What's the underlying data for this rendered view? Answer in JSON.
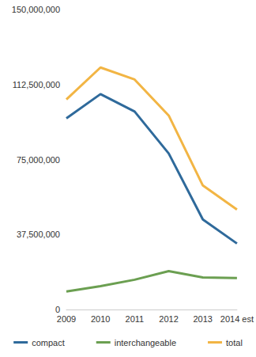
{
  "chart_data": {
    "type": "line",
    "categories": [
      "2009",
      "2010",
      "2011",
      "2012",
      "2013",
      "2014 est"
    ],
    "series": [
      {
        "name": "compact",
        "color": "#2f6a9b",
        "values": [
          95600000,
          107700000,
          99000000,
          78000000,
          45000000,
          33000000
        ]
      },
      {
        "name": "interchangeable",
        "color": "#6b9f51",
        "values": [
          9000000,
          11700000,
          14900000,
          19200000,
          16000000,
          15700000
        ]
      },
      {
        "name": "total",
        "color": "#f2b544",
        "values": [
          105000000,
          121000000,
          115000000,
          97000000,
          62000000,
          50000000
        ]
      }
    ],
    "ylim": [
      0,
      150000000
    ],
    "yticks": [
      0,
      {
        "value": 37500000,
        "label": "37,500,000"
      },
      {
        "value": 75000000,
        "label": "75,000,000"
      },
      {
        "value": 112500000,
        "label": "112,500,000"
      },
      {
        "value": 150000000,
        "label": "150,000,000"
      }
    ],
    "grid": false,
    "legend": "bottom",
    "marker": "none",
    "line_style": "solid"
  }
}
